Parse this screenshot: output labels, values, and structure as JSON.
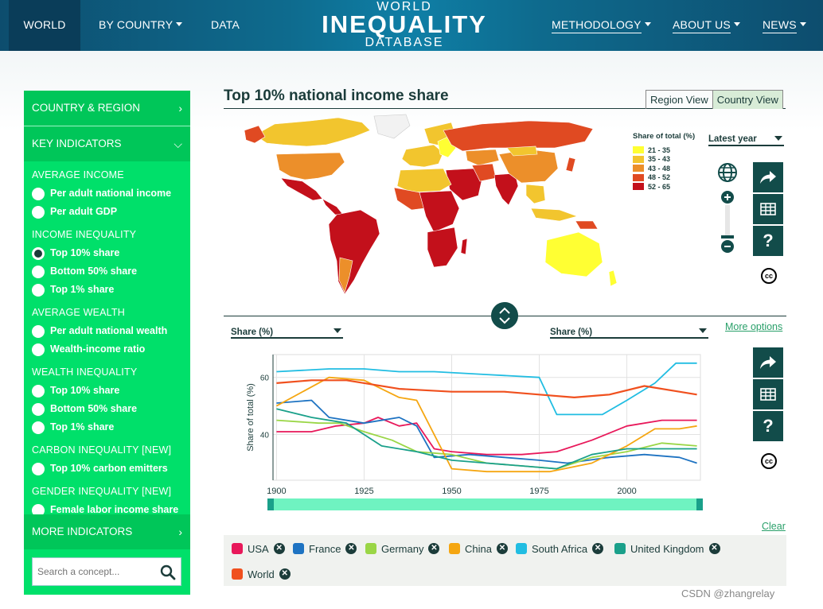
{
  "nav": {
    "world": "WORLD",
    "by_country": "BY COUNTRY",
    "data": "DATA",
    "methodology": "METHODOLOGY",
    "about": "ABOUT US",
    "news": "NEWS",
    "brand_l1": "WORLD",
    "brand_l2": "INEQUALITY",
    "brand_l3": "DATABASE"
  },
  "sidebar": {
    "country_region": "COUNTRY & REGION",
    "key_indicators": "KEY INDICATORS",
    "more_indicators": "MORE INDICATORS",
    "search_placeholder": "Search a concept...",
    "categories": [
      {
        "title": "AVERAGE INCOME",
        "options": [
          {
            "label": "Per adult national income",
            "selected": false
          },
          {
            "label": "Per adult GDP",
            "selected": false
          }
        ]
      },
      {
        "title": "INCOME INEQUALITY",
        "options": [
          {
            "label": "Top 10% share",
            "selected": true
          },
          {
            "label": "Bottom 50% share",
            "selected": false
          },
          {
            "label": "Top 1% share",
            "selected": false
          }
        ]
      },
      {
        "title": "AVERAGE WEALTH",
        "options": [
          {
            "label": "Per adult national wealth",
            "selected": false
          },
          {
            "label": "Wealth-income ratio",
            "selected": false
          }
        ]
      },
      {
        "title": "WEALTH INEQUALITY",
        "options": [
          {
            "label": "Top 10% share",
            "selected": false
          },
          {
            "label": "Bottom 50% share",
            "selected": false
          },
          {
            "label": "Top 1% share",
            "selected": false
          }
        ]
      },
      {
        "title": "CARBON INEQUALITY [NEW]",
        "options": [
          {
            "label": "Top 10% carbon emitters",
            "selected": false
          }
        ]
      },
      {
        "title": "GENDER INEQUALITY [NEW]",
        "options": [
          {
            "label": "Female labor income share",
            "selected": false
          }
        ]
      }
    ]
  },
  "main": {
    "title": "Top 10% national income share",
    "region_view": "Region View",
    "country_view": "Country View",
    "year_select": "Latest year",
    "left_axis_select": "Share (%)",
    "right_axis_select": "Share (%)",
    "more_options": "More options",
    "clear": "Clear",
    "watermark": "CSDN @zhangrelay"
  },
  "map_legend": {
    "title": "Share of total (%)",
    "items": [
      {
        "label": "21 - 35",
        "color": "#ffff33"
      },
      {
        "label": "35 - 43",
        "color": "#f2c52e"
      },
      {
        "label": "43 - 48",
        "color": "#ec8f2a"
      },
      {
        "label": "48 - 52",
        "color": "#e04a22"
      },
      {
        "label": "52 - 65",
        "color": "#c3101b"
      }
    ]
  },
  "chart_data": {
    "type": "line",
    "ylabel": "Share of total (%)",
    "xlabel": "",
    "xlim": [
      1899,
      2021
    ],
    "ylim": [
      24,
      68
    ],
    "xticks": [
      1900,
      1925,
      1950,
      1975,
      2000
    ],
    "yticks": [
      40,
      60
    ],
    "series": [
      {
        "name": "USA",
        "color": "#e8185a",
        "x": [
          1900,
          1910,
          1917,
          1925,
          1929,
          1935,
          1940,
          1945,
          1950,
          1960,
          1970,
          1980,
          1990,
          2000,
          2010,
          2020
        ],
        "y": [
          41,
          41,
          43,
          44,
          46,
          43,
          44,
          35,
          34,
          33,
          33,
          34,
          38,
          43,
          45,
          45
        ]
      },
      {
        "name": "France",
        "color": "#1e73c2",
        "x": [
          1900,
          1910,
          1915,
          1925,
          1935,
          1940,
          1945,
          1955,
          1965,
          1975,
          1983,
          1995,
          2005,
          2015,
          2020
        ],
        "y": [
          51,
          52,
          46,
          44,
          46,
          43,
          32,
          33,
          32,
          31,
          30,
          32,
          33,
          32,
          30
        ]
      },
      {
        "name": "Germany",
        "color": "#9ad646",
        "x": [
          1900,
          1912,
          1918,
          1925,
          1933,
          1940,
          1950,
          1960,
          1970,
          1980,
          1990,
          2000,
          2010,
          2020
        ],
        "y": [
          45,
          44,
          44,
          41,
          38,
          34,
          33,
          30,
          29,
          28,
          32,
          34,
          37,
          36
        ]
      },
      {
        "name": "China",
        "color": "#f5a611",
        "x": [
          1900,
          1915,
          1925,
          1935,
          1940,
          1950,
          1960,
          1970,
          1978,
          1990,
          2000,
          2008,
          2015,
          2020
        ],
        "y": [
          50,
          60,
          59,
          53,
          52,
          28,
          27,
          27,
          27,
          30,
          36,
          42,
          42,
          43
        ]
      },
      {
        "name": "South Africa",
        "color": "#21bde2",
        "x": [
          1900,
          1915,
          1925,
          1935,
          1945,
          1960,
          1975,
          1980,
          1993,
          2000,
          2008,
          2014,
          2020
        ],
        "y": [
          62,
          63,
          63,
          62,
          62,
          61,
          60,
          47,
          47,
          52,
          58,
          65,
          65
        ]
      },
      {
        "name": "United Kingdom",
        "color": "#1aa08a",
        "x": [
          1900,
          1910,
          1920,
          1930,
          1940,
          1950,
          1960,
          1970,
          1980,
          1990,
          2000,
          2010,
          2020
        ],
        "y": [
          49,
          46,
          44,
          36,
          34,
          31,
          30,
          29,
          28,
          33,
          35,
          35,
          35
        ]
      },
      {
        "name": "World",
        "color": "#f0501e",
        "x": [
          1900,
          1910,
          1920,
          1935,
          1950,
          1965,
          1975,
          1985,
          1995,
          2005,
          2015,
          2020
        ],
        "y": [
          58,
          59,
          59,
          56,
          55,
          55,
          54,
          53,
          54,
          57,
          55,
          54
        ]
      }
    ]
  }
}
